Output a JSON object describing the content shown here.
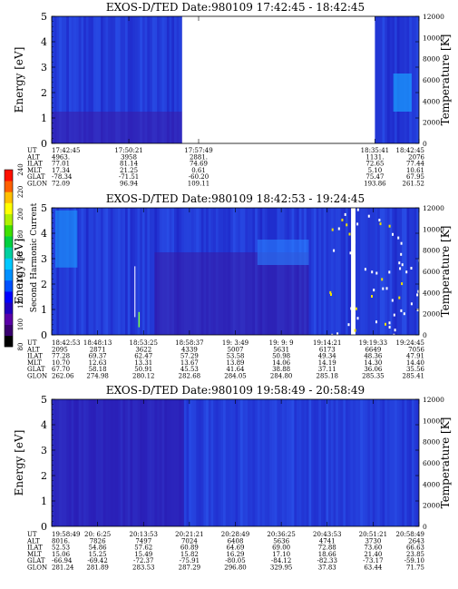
{
  "colorbar": {
    "label": "Second Harmonic Current",
    "ticks": [
      "80",
      "100",
      "120",
      "140",
      "160",
      "180",
      "200",
      "220",
      "240"
    ],
    "colors": [
      "#000000",
      "#3a0070",
      "#5a00a8",
      "#2000c0",
      "#0000ff",
      "#0050ff",
      "#0090ff",
      "#00c8ff",
      "#00d0a0",
      "#00d040",
      "#40e000",
      "#b0f000",
      "#ffff00",
      "#ffc000",
      "#ff6000",
      "#ff1000"
    ]
  },
  "chart_data": [
    {
      "type": "heatmap",
      "title": "EXOS-D/TED   Date:980109   17:42:45 - 18:42:45",
      "ylabel": "Energy [eV]",
      "y2label": "Temperature [K]",
      "ylim": [
        0,
        5
      ],
      "y2lim": [
        0,
        12000
      ],
      "yticks": [
        "0",
        "1",
        "2",
        "3",
        "4",
        "5"
      ],
      "y2ticks": [
        "0",
        "2000",
        "4000",
        "6000",
        "8000",
        "10000",
        "12000"
      ],
      "data_gap": true,
      "row_labels": [
        "UT",
        "ALT",
        "ILAT",
        "MLT",
        "GLAT",
        "GLON"
      ],
      "columns": [
        [
          "17:42:45",
          "4963.",
          "77.01",
          "17.34",
          "-78.34",
          "72.09"
        ],
        [
          "17:50:21",
          "3958",
          "81.14",
          "21.25",
          "-71.51",
          "96.94"
        ],
        [
          "17:57:49",
          "2881.",
          "74.69",
          "0.61",
          "-60.20",
          "109.11"
        ],
        [
          "18:35:41",
          "1131.",
          "72.65",
          "5.10",
          "75.47",
          "193.86"
        ],
        [
          "18:42:45",
          "2076",
          "77.44",
          "10.61",
          "67.95",
          "261.52"
        ]
      ]
    },
    {
      "type": "heatmap",
      "title": "EXOS-D/TED   Date:980109   18:42:53 - 19:24:45",
      "ylabel": "Energy [eV]",
      "y2label": "Temperature [K]",
      "ylim": [
        0,
        5
      ],
      "y2lim": [
        0,
        12000
      ],
      "yticks": [
        "0",
        "1",
        "2",
        "3",
        "4",
        "5"
      ],
      "y2ticks": [
        "0",
        "2000",
        "4000",
        "6000",
        "8000",
        "10000",
        "12000"
      ],
      "row_labels": [
        "UT",
        "ALT",
        "ILAT",
        "MLT",
        "GLAT",
        "GLON"
      ],
      "columns": [
        [
          "18:42:53",
          "2095",
          "77.28",
          "10.70",
          "67.70",
          "262.06"
        ],
        [
          "18:48:13",
          "2871",
          "69.37",
          "12.63",
          "58.18",
          "274.98"
        ],
        [
          "18:53:25",
          "3622",
          "62.47",
          "13.31",
          "50.91",
          "280.12"
        ],
        [
          "18:58:37",
          "4339",
          "57.29",
          "13.67",
          "45.53",
          "282.68"
        ],
        [
          "19: 3:49",
          "5007",
          "53.58",
          "13.89",
          "41.64",
          "284.05"
        ],
        [
          "19: 9: 9",
          "5631",
          "50.98",
          "14.06",
          "38.88",
          "284.80"
        ],
        [
          "19:14:21",
          "6173",
          "49.34",
          "14.19",
          "37.11",
          "285.18"
        ],
        [
          "19:19:33",
          "6649",
          "48.36",
          "14.30",
          "36.06",
          "285.35"
        ],
        [
          "19:24:45",
          "7056",
          "47.91",
          "14.40",
          "35.56",
          "285.41"
        ]
      ]
    },
    {
      "type": "heatmap",
      "title": "EXOS-D/TED   Date:980109   19:58:49 - 20:58:49",
      "ylabel": "Energy [eV]",
      "y2label": "Temperature [K]",
      "ylim": [
        0,
        5
      ],
      "y2lim": [
        0,
        12000
      ],
      "yticks": [
        "0",
        "1",
        "2",
        "3",
        "4",
        "5"
      ],
      "y2ticks": [
        "0",
        "2000",
        "4000",
        "6000",
        "8000",
        "10000",
        "12000"
      ],
      "row_labels": [
        "UT",
        "ALT",
        "ILAT",
        "MLT",
        "GLAT",
        "GLON"
      ],
      "columns": [
        [
          "19:58:49",
          "8016.",
          "52.53",
          "15.06",
          "-66.94",
          "281.24"
        ],
        [
          "20: 6:25",
          "7826",
          "54.86",
          "15.25",
          "-69.42",
          "281.89"
        ],
        [
          "20:13:53",
          "7497",
          "57.62",
          "15.49",
          "-72.37",
          "283.53"
        ],
        [
          "20:21:21",
          "7024",
          "60.89",
          "15.82",
          "-75.91",
          "287.29"
        ],
        [
          "20:28:49",
          "6408",
          "64.69",
          "16.29",
          "-80.05",
          "296.80"
        ],
        [
          "20:36:25",
          "5636",
          "69.00",
          "17.10",
          "-84.12",
          "329.95"
        ],
        [
          "20:43:53",
          "4741",
          "72.88",
          "18.66",
          "-82.33",
          "37.83"
        ],
        [
          "20:51:21",
          "3730",
          "73.60",
          "21.40",
          "-73.17",
          "63.44"
        ],
        [
          "20:58:49",
          "2643",
          "66.63",
          "23.85",
          "-59.10",
          "71.75"
        ]
      ]
    }
  ]
}
